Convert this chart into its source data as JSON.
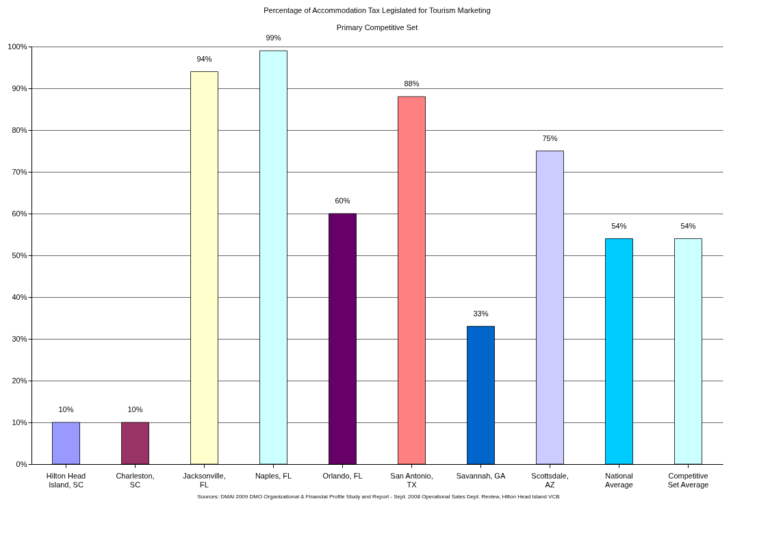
{
  "chart_data": {
    "type": "bar",
    "title": "Percentage of Accommodation Tax Legislated for Tourism Marketing",
    "subtitle": "Primary Competitive Set",
    "categories": [
      "Hilton Head Island, SC",
      "Charleston, SC",
      "Jacksonville, FL",
      "Naples, FL",
      "Orlando, FL",
      "San Antonio, TX",
      "Savannah, GA",
      "Scottsdale, AZ",
      "National Average",
      "Competitive Set Average"
    ],
    "values": [
      10,
      10,
      94,
      99,
      60,
      88,
      33,
      75,
      54,
      54
    ],
    "value_labels": [
      "10%",
      "10%",
      "94%",
      "99%",
      "60%",
      "88%",
      "33%",
      "75%",
      "54%",
      "54%"
    ],
    "colors": [
      "#9999ff",
      "#993366",
      "#ffffcc",
      "#ccffff",
      "#660066",
      "#ff8080",
      "#0066cc",
      "#ccccff",
      "#00ccff",
      "#ccffff"
    ],
    "ylim": [
      0,
      100
    ],
    "yticks": [
      {
        "value": 0,
        "label": "0%"
      },
      {
        "value": 10,
        "label": "10%"
      },
      {
        "value": 20,
        "label": "20%"
      },
      {
        "value": 30,
        "label": "30%"
      },
      {
        "value": 40,
        "label": "40%"
      },
      {
        "value": 50,
        "label": "50%"
      },
      {
        "value": 60,
        "label": "60%"
      },
      {
        "value": 70,
        "label": "70%"
      },
      {
        "value": 80,
        "label": "80%"
      },
      {
        "value": 90,
        "label": "90%"
      },
      {
        "value": 100,
        "label": "100%"
      }
    ],
    "grid": true,
    "annotations": [
      "Sources: DMAI 2009 DMO Organizational & Financial Profile Study and Report - Sept. 2008 Operational Sales Dept. Review, Hilton Head Island VCB"
    ]
  }
}
